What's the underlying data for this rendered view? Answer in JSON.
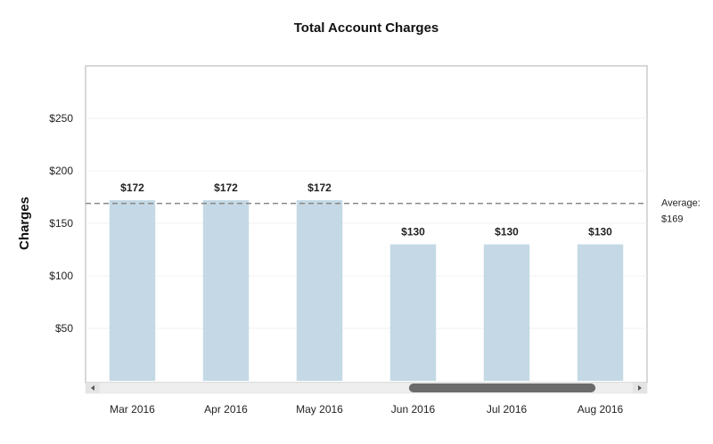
{
  "chart_data": {
    "type": "bar",
    "title": "Total Account Charges",
    "xlabel": "",
    "ylabel": "Charges",
    "categories": [
      "Mar 2016",
      "Apr 2016",
      "May 2016",
      "Jun 2016",
      "Jul 2016",
      "Aug 2016"
    ],
    "values": [
      172,
      172,
      172,
      130,
      130,
      130
    ],
    "data_labels": [
      "$172",
      "$172",
      "$172",
      "$130",
      "$130",
      "$130"
    ],
    "ylim": [
      0,
      300
    ],
    "y_ticks": [
      50,
      100,
      150,
      200,
      250
    ],
    "y_tick_labels": [
      "$50",
      "$100",
      "$150",
      "$200",
      "$250"
    ],
    "grid": true,
    "average": {
      "value": 169,
      "label_line1": "Average:",
      "label_line2": "$169"
    },
    "bar_color": "#c4d9e5",
    "scrollbar": {
      "thumb_start_fraction": 0.58,
      "thumb_end_fraction": 0.93
    }
  }
}
